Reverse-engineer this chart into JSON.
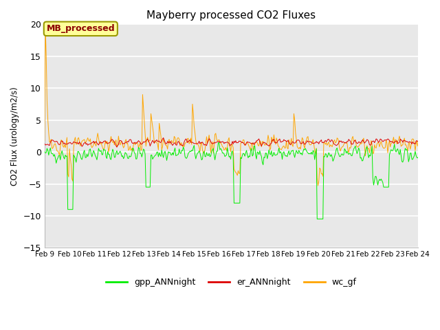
{
  "title": "Mayberry processed CO2 Fluxes",
  "ylabel": "CO2 Flux (urology/m2/s)",
  "ylim": [
    -15,
    20
  ],
  "yticks": [
    -15,
    -10,
    -5,
    0,
    5,
    10,
    15,
    20
  ],
  "xtick_labels": [
    "Feb 9",
    "Feb 10",
    "Feb 11",
    "Feb 12",
    "Feb 13",
    "Feb 14",
    "Feb 15",
    "Feb 16",
    "Feb 17",
    "Feb 18",
    "Feb 19",
    "Feb 20",
    "Feb 21",
    "Feb 22",
    "Feb 23",
    "Feb 24"
  ],
  "annotation_text": "MB_processed",
  "annotation_color": "#8B0000",
  "annotation_bg": "#FFFF99",
  "annotation_border": "#999900",
  "gpp_color": "#00EE00",
  "er_color": "#DD0000",
  "wc_color": "#FFA500",
  "legend_labels": [
    "gpp_ANNnight",
    "er_ANNnight",
    "wc_gf"
  ],
  "bg_color": "#E8E8E8",
  "grid_color": "#FFFFFF",
  "n_points": 480,
  "random_seed": 42
}
